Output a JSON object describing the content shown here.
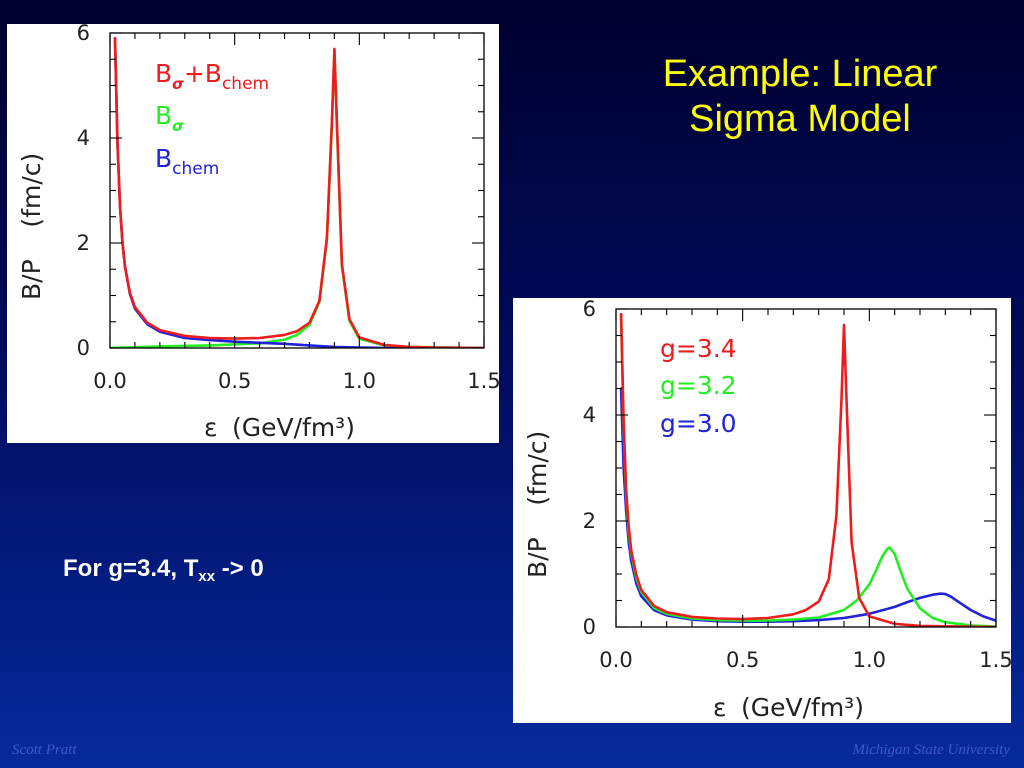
{
  "slide": {
    "title_line1": "Example: Linear",
    "title_line2": "Sigma Model",
    "note_main": "For g=3.4, T",
    "note_sub": "xx",
    "note_tail": " -> 0",
    "footer_left": "Scott Pratt",
    "footer_right": "Michigan State University"
  },
  "chart_data": [
    {
      "type": "line",
      "xlabel_symbol": "ε",
      "xlabel_units": "(GeV/fm³)",
      "ylabel": "B/P    (fm/c)",
      "xlim": [
        0.0,
        1.5
      ],
      "ylim": [
        0,
        6
      ],
      "xticks": [
        "0.0",
        "0.5",
        "1.0",
        "1.5"
      ],
      "yticks": [
        "0",
        "2",
        "4",
        "6"
      ],
      "legend_position": "top-left",
      "series": [
        {
          "name": "Bσ+Bchem",
          "legend": {
            "base1": "B",
            "sub1": "σ",
            "plus": "+",
            "base2": "B",
            "sub2": "chem"
          },
          "color": "#ee1c1c",
          "x": [
            0.02,
            0.03,
            0.04,
            0.05,
            0.06,
            0.08,
            0.1,
            0.15,
            0.2,
            0.3,
            0.4,
            0.5,
            0.6,
            0.7,
            0.75,
            0.8,
            0.84,
            0.87,
            0.89,
            0.9,
            0.91,
            0.93,
            0.96,
            1.0,
            1.1,
            1.2,
            1.3,
            1.5
          ],
          "y": [
            5.9,
            3.9,
            2.7,
            2.0,
            1.55,
            1.05,
            0.78,
            0.48,
            0.34,
            0.23,
            0.19,
            0.18,
            0.19,
            0.25,
            0.32,
            0.48,
            0.9,
            2.1,
            4.3,
            5.7,
            4.3,
            1.6,
            0.55,
            0.2,
            0.06,
            0.02,
            0.01,
            0.0
          ]
        },
        {
          "name": "Bσ",
          "legend": {
            "base": "B",
            "sub": "σ"
          },
          "color": "#22ee22",
          "x": [
            0.0,
            0.2,
            0.4,
            0.6,
            0.7,
            0.75,
            0.8,
            0.84,
            0.87,
            0.89,
            0.9,
            0.91,
            0.93,
            0.96,
            1.0,
            1.1,
            1.2,
            1.5
          ],
          "y": [
            0.0,
            0.03,
            0.05,
            0.09,
            0.16,
            0.25,
            0.44,
            0.88,
            2.05,
            4.25,
            5.65,
            4.25,
            1.55,
            0.52,
            0.18,
            0.05,
            0.02,
            0.0
          ]
        },
        {
          "name": "Bchem",
          "legend": {
            "base": "B",
            "sub": "chem"
          },
          "color": "#2222dd",
          "x": [
            0.02,
            0.03,
            0.04,
            0.05,
            0.06,
            0.08,
            0.1,
            0.15,
            0.2,
            0.3,
            0.4,
            0.5,
            0.6,
            0.7,
            0.8,
            0.9,
            1.0,
            1.1,
            1.5
          ],
          "y": [
            5.9,
            3.9,
            2.7,
            2.0,
            1.55,
            1.03,
            0.75,
            0.45,
            0.31,
            0.19,
            0.15,
            0.12,
            0.1,
            0.08,
            0.05,
            0.02,
            0.01,
            0.0,
            0.0
          ]
        }
      ]
    },
    {
      "type": "line",
      "xlabel_symbol": "ε",
      "xlabel_units": "(GeV/fm³)",
      "ylabel": "B/P    (fm/c)",
      "xlim": [
        0.0,
        1.5
      ],
      "ylim": [
        0,
        6
      ],
      "xticks": [
        "0.0",
        "0.5",
        "1.0",
        "1.5"
      ],
      "yticks": [
        "0",
        "2",
        "4",
        "6"
      ],
      "legend_position": "top-center",
      "series": [
        {
          "name": "g=3.4",
          "color": "#ee1c1c",
          "x": [
            0.02,
            0.03,
            0.04,
            0.05,
            0.06,
            0.08,
            0.1,
            0.15,
            0.2,
            0.3,
            0.4,
            0.5,
            0.6,
            0.7,
            0.75,
            0.8,
            0.84,
            0.87,
            0.89,
            0.9,
            0.91,
            0.93,
            0.96,
            1.0,
            1.1,
            1.2,
            1.5
          ],
          "y": [
            5.9,
            3.9,
            2.6,
            1.9,
            1.45,
            0.98,
            0.7,
            0.4,
            0.28,
            0.19,
            0.16,
            0.15,
            0.17,
            0.24,
            0.32,
            0.48,
            0.9,
            2.1,
            4.3,
            5.7,
            4.3,
            1.6,
            0.55,
            0.2,
            0.06,
            0.02,
            0.0
          ]
        },
        {
          "name": "g=3.2",
          "color": "#22ee22",
          "x": [
            0.02,
            0.03,
            0.04,
            0.05,
            0.06,
            0.08,
            0.1,
            0.15,
            0.2,
            0.3,
            0.4,
            0.5,
            0.6,
            0.7,
            0.8,
            0.9,
            0.95,
            1.0,
            1.03,
            1.05,
            1.07,
            1.08,
            1.1,
            1.12,
            1.15,
            1.2,
            1.25,
            1.3,
            1.4,
            1.5
          ],
          "y": [
            5.9,
            3.8,
            2.5,
            1.8,
            1.4,
            0.92,
            0.66,
            0.36,
            0.25,
            0.16,
            0.13,
            0.12,
            0.12,
            0.14,
            0.18,
            0.32,
            0.5,
            0.8,
            1.1,
            1.32,
            1.47,
            1.5,
            1.38,
            1.1,
            0.72,
            0.35,
            0.17,
            0.09,
            0.03,
            0.01
          ]
        },
        {
          "name": "g=3.0",
          "color": "#2222dd",
          "x": [
            0.02,
            0.03,
            0.04,
            0.05,
            0.06,
            0.08,
            0.1,
            0.15,
            0.2,
            0.3,
            0.4,
            0.5,
            0.6,
            0.7,
            0.8,
            0.9,
            1.0,
            1.1,
            1.15,
            1.2,
            1.25,
            1.28,
            1.3,
            1.32,
            1.35,
            1.4,
            1.45,
            1.5
          ],
          "y": [
            4.5,
            3.0,
            2.2,
            1.6,
            1.25,
            0.82,
            0.58,
            0.32,
            0.22,
            0.14,
            0.11,
            0.1,
            0.1,
            0.11,
            0.13,
            0.17,
            0.25,
            0.38,
            0.47,
            0.55,
            0.61,
            0.63,
            0.62,
            0.58,
            0.48,
            0.32,
            0.2,
            0.12
          ]
        }
      ]
    }
  ]
}
